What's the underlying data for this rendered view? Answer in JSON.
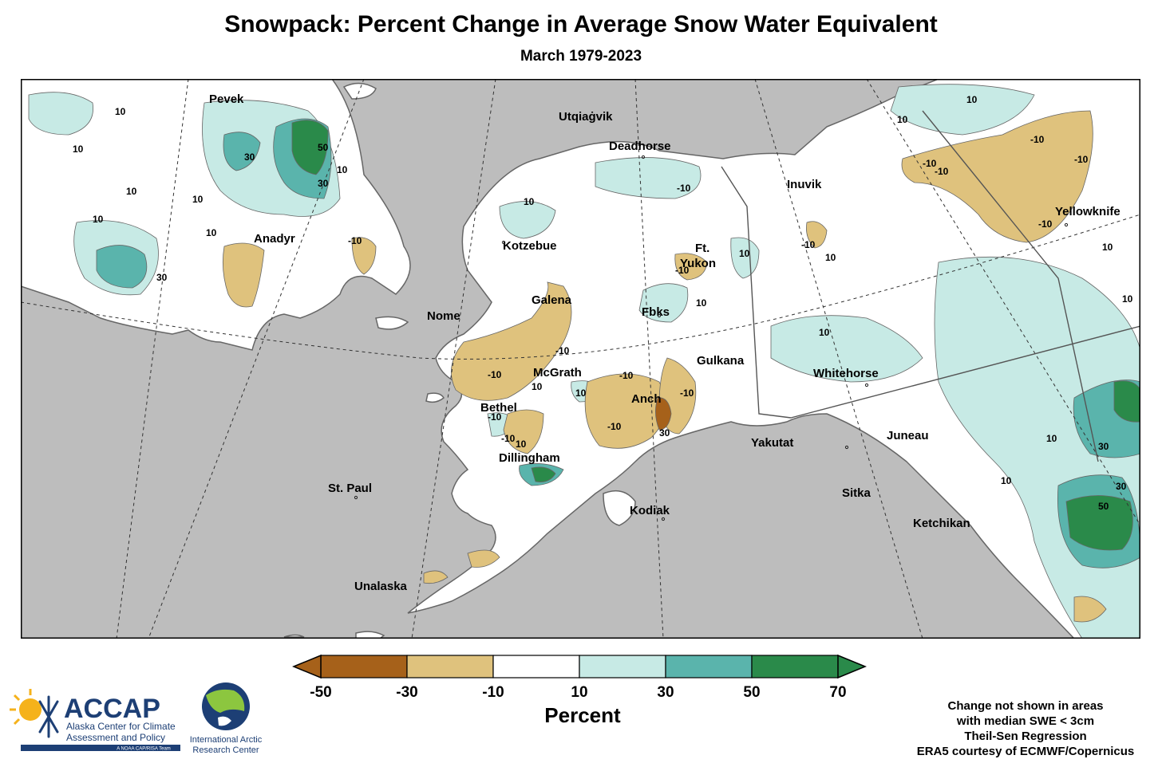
{
  "title": "Snowpack: Percent Change in Average Snow Water Equivalent",
  "subtitle": "March 1979-2023",
  "map": {
    "places": [
      {
        "name": "Pevek"
      },
      {
        "name": "Anadyr"
      },
      {
        "name": "Utqiaġvik"
      },
      {
        "name": "Deadhorse"
      },
      {
        "name": "Inuvik"
      },
      {
        "name": "Yellowknife"
      },
      {
        "name": "Kotzebue"
      },
      {
        "name": "Ft."
      },
      {
        "name": "Yukon"
      },
      {
        "name": "Galena"
      },
      {
        "name": "Nome"
      },
      {
        "name": "Fbks"
      },
      {
        "name": "Gulkana"
      },
      {
        "name": "McGrath"
      },
      {
        "name": "Whitehorse"
      },
      {
        "name": "Bethel"
      },
      {
        "name": "Anch"
      },
      {
        "name": "Yakutat"
      },
      {
        "name": "Juneau"
      },
      {
        "name": "Dillingham"
      },
      {
        "name": "St. Paul"
      },
      {
        "name": "Kodiak"
      },
      {
        "name": "Sitka"
      },
      {
        "name": "Ketchikan"
      },
      {
        "name": "Unalaska"
      }
    ],
    "contour_labels": [
      "10",
      "10",
      "10",
      "10",
      "30",
      "50",
      "30",
      "10",
      "10",
      "10",
      "-10",
      "30",
      "10",
      "-10",
      "-10",
      "10",
      "-10",
      "10",
      "10",
      "-10",
      "-10",
      "10",
      "10",
      "-10",
      "-10",
      "-10",
      "10",
      "-10",
      "10",
      "-10",
      "-10",
      "10",
      "10",
      "-10",
      "-10",
      "30",
      "10",
      "10",
      "30",
      "50",
      "30",
      "10",
      "-10",
      "-10",
      "10"
    ],
    "colors": {
      "ocean": "#bdbdbd",
      "land": "#ffffff",
      "neg_50_30": "#a6611a",
      "neg_30_10": "#dfc27d",
      "pos_10_30": "#c7eae5",
      "pos_30_50": "#5ab4ac",
      "pos_50_70": "#2a8a4a",
      "coast": "#666666"
    }
  },
  "legend": {
    "title": "Percent",
    "ticks": [
      "-50",
      "-30",
      "-10",
      "10",
      "30",
      "50",
      "70"
    ],
    "bins": [
      {
        "from": -50,
        "to": -30,
        "color": "#a6611a"
      },
      {
        "from": -30,
        "to": -10,
        "color": "#dfc27d"
      },
      {
        "from": -10,
        "to": 10,
        "color": "#ffffff"
      },
      {
        "from": 10,
        "to": 30,
        "color": "#c7eae5"
      },
      {
        "from": 30,
        "to": 50,
        "color": "#5ab4ac"
      },
      {
        "from": 50,
        "to": 70,
        "color": "#2a8a4a"
      }
    ]
  },
  "notes": [
    "Change not shown in areas",
    "with median SWE < 3cm",
    "Theil-Sen Regression",
    "ERA5 courtesy of ECMWF/Copernicus"
  ],
  "logos": {
    "accap_name": "ACCAP",
    "accap_line1": "Alaska Center for Climate",
    "accap_line2": "Assessment and Policy",
    "accap_tag": "A NOAA CAP/RISA Team",
    "iarc_line1": "International Arctic",
    "iarc_line2": "Research Center"
  }
}
